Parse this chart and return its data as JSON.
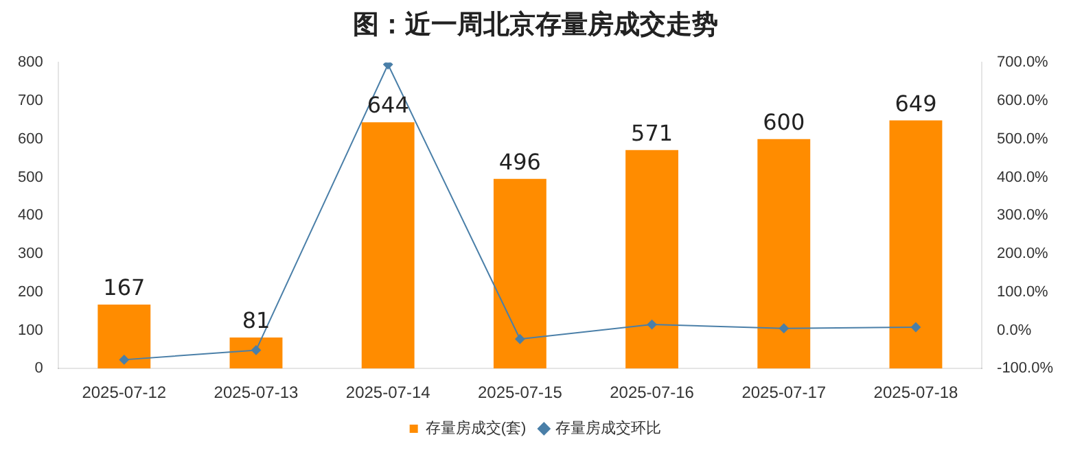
{
  "chart_data": {
    "type": "bar",
    "title": "图：近一周北京存量房成交走势",
    "categories": [
      "2025-07-12",
      "2025-07-13",
      "2025-07-14",
      "2025-07-15",
      "2025-07-16",
      "2025-07-17",
      "2025-07-18"
    ],
    "series": [
      {
        "name": "存量房成交(套)",
        "color": "#ff8c00",
        "values": [
          167,
          81,
          644,
          496,
          571,
          600,
          649
        ],
        "value_labels": [
          "167",
          "81",
          "644",
          "496",
          "571",
          "600",
          "649"
        ]
      },
      {
        "name": "存量房成交环比",
        "type": "line",
        "axis": "y2",
        "color": "#4a7fa8",
        "marker": "diamond",
        "values": [
          -77,
          -52,
          695,
          -23,
          15,
          5,
          8
        ]
      }
    ],
    "ylim": [
      0,
      800
    ],
    "yticks": [
      0,
      100,
      200,
      300,
      400,
      500,
      600,
      700,
      800
    ],
    "y2lim": [
      -100,
      700
    ],
    "y2ticks": [
      {
        "value": -100,
        "label": "-100.0%"
      },
      {
        "value": 0,
        "label": "0.0%"
      },
      {
        "value": 100,
        "label": "100.0%"
      },
      {
        "value": 200,
        "label": "200.0%"
      },
      {
        "value": 300,
        "label": "300.0%"
      },
      {
        "value": 400,
        "label": "400.0%"
      },
      {
        "value": 500,
        "label": "500.0%"
      },
      {
        "value": 600,
        "label": "600.0%"
      },
      {
        "value": 700,
        "label": "700.0%"
      }
    ],
    "grid": false,
    "legend": "bottom"
  }
}
